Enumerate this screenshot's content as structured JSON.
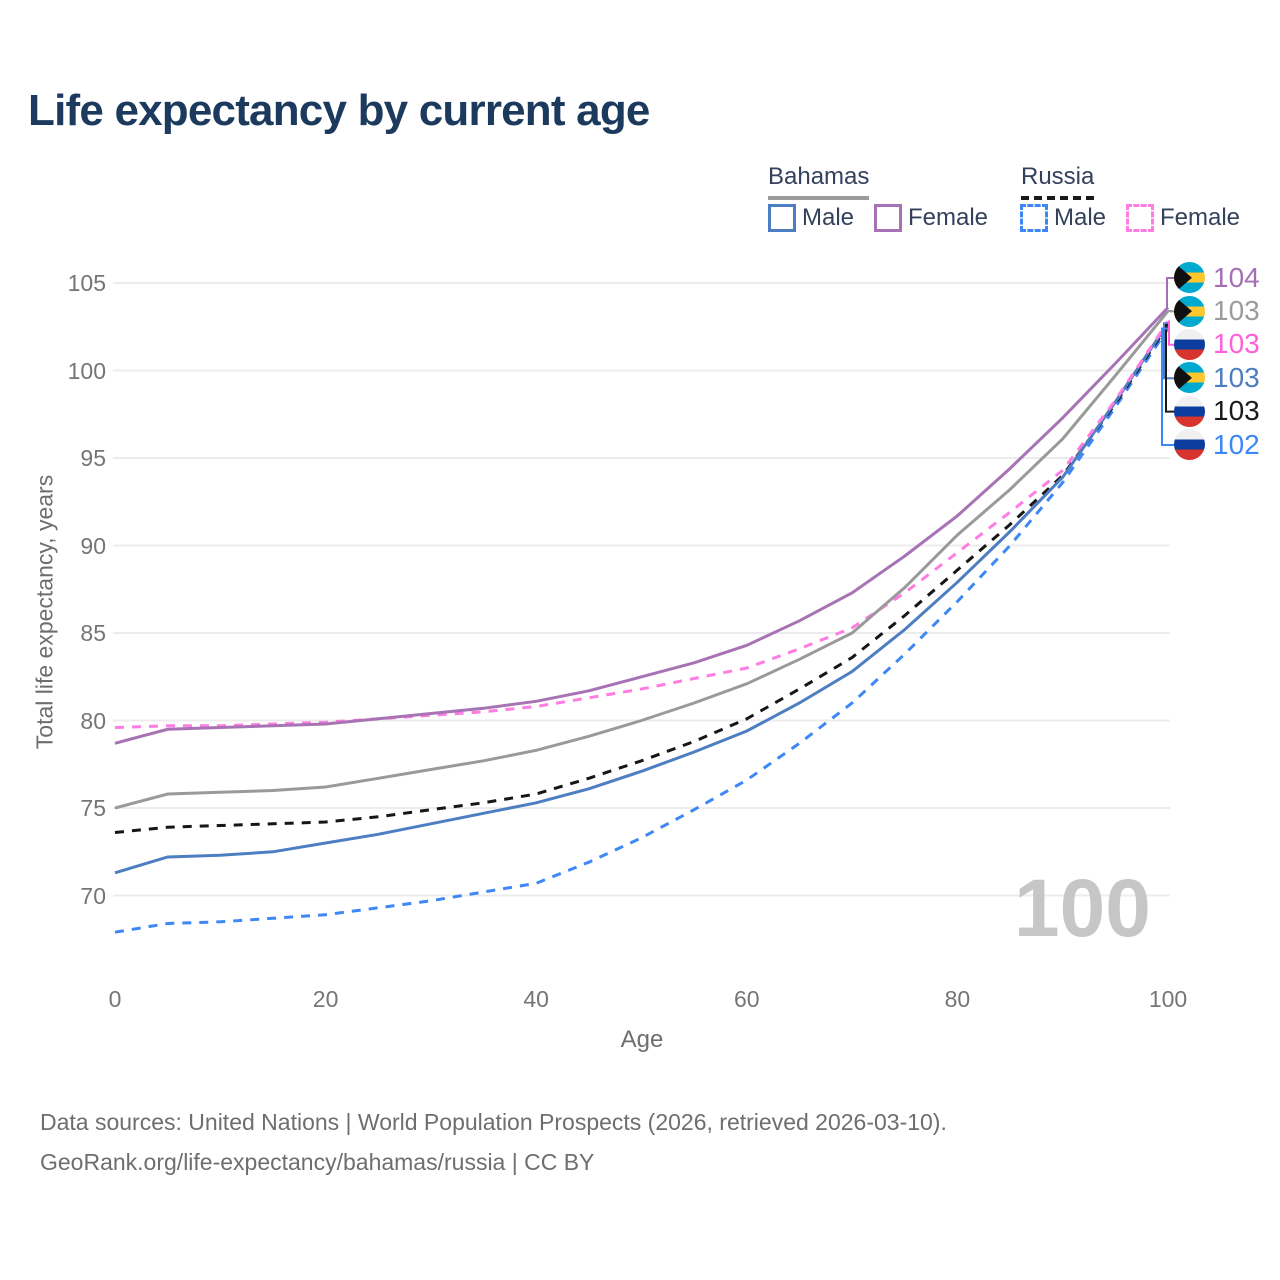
{
  "header": {
    "title": "Life expectancy by current age"
  },
  "legend": {
    "groups": [
      {
        "label": "Bahamas",
        "style": "solid",
        "underline_color": "#9b9b9b"
      },
      {
        "label": "Russia",
        "style": "dashed",
        "underline_color": "#1a1a1a"
      }
    ],
    "items": [
      {
        "label": "Male",
        "country": "Bahamas",
        "color": "#4d7ec1",
        "dash": false
      },
      {
        "label": "Female",
        "country": "Bahamas",
        "color": "#a873b4",
        "dash": false
      },
      {
        "label": "Male",
        "country": "Russia",
        "color": "#3d87f7",
        "dash": true
      },
      {
        "label": "Female",
        "country": "Russia",
        "color": "#ff7ce3",
        "dash": true
      }
    ]
  },
  "watermark": {
    "text": "100"
  },
  "right_labels": [
    {
      "flag": "bahamas",
      "value": "104",
      "color": "#a46fb5",
      "series": 0
    },
    {
      "flag": "bahamas",
      "value": "103",
      "color": "#9b9b9b",
      "series": 1
    },
    {
      "flag": "russia",
      "value": "103",
      "color": "#ff5fd8",
      "series": 2
    },
    {
      "flag": "bahamas",
      "value": "103",
      "color": "#4d7ec1",
      "series": 3
    },
    {
      "flag": "russia",
      "value": "103",
      "color": "#1a1a1a",
      "series": 4
    },
    {
      "flag": "russia",
      "value": "102",
      "color": "#3d87f7",
      "series": 5
    }
  ],
  "footer": {
    "line1": "Data sources: United Nations | World Population Prospects (2026, retrieved 2026-03-10).",
    "line2": "GeoRank.org/life-expectancy/bahamas/russia | CC BY"
  },
  "chart_data": {
    "type": "line",
    "title": "Life expectancy by current age",
    "xlabel": "Age",
    "ylabel": "Total life expectancy, years",
    "xlim": [
      0,
      100
    ],
    "ylim": [
      66,
      106
    ],
    "x_ticks": [
      0,
      20,
      40,
      60,
      80,
      100
    ],
    "y_ticks": [
      70,
      75,
      80,
      85,
      90,
      95,
      100,
      105
    ],
    "grid": "horizontal",
    "legend_position": "top-right",
    "x": [
      0,
      5,
      10,
      15,
      20,
      25,
      30,
      35,
      40,
      45,
      50,
      55,
      60,
      65,
      70,
      75,
      80,
      85,
      90,
      95,
      100
    ],
    "series": [
      {
        "name": "Bahamas Female",
        "country": "Bahamas",
        "sex": "Female",
        "color": "#a873b4",
        "dash": false,
        "end_label": "104",
        "values": [
          78.7,
          79.5,
          79.6,
          79.7,
          79.8,
          80.1,
          80.4,
          80.7,
          81.1,
          81.7,
          82.5,
          83.3,
          84.3,
          85.7,
          87.3,
          89.4,
          91.7,
          94.4,
          97.3,
          100.4,
          103.6
        ]
      },
      {
        "name": "Bahamas Both sexes",
        "country": "Bahamas",
        "sex": "Both",
        "color": "#9a9a9a",
        "dash": false,
        "end_label": "103",
        "values": [
          75.0,
          75.8,
          75.9,
          76.0,
          76.2,
          76.7,
          77.2,
          77.7,
          78.3,
          79.1,
          80.0,
          81.0,
          82.1,
          83.5,
          85.0,
          87.6,
          90.6,
          93.2,
          96.1,
          99.7,
          103.4
        ]
      },
      {
        "name": "Russia Female",
        "country": "Russia",
        "sex": "Female",
        "color": "#ff7ce3",
        "dash": true,
        "end_label": "103",
        "values": [
          79.6,
          79.7,
          79.7,
          79.8,
          79.9,
          80.1,
          80.3,
          80.5,
          80.8,
          81.3,
          81.8,
          82.4,
          83.0,
          84.1,
          85.3,
          87.3,
          89.6,
          91.9,
          94.3,
          98.3,
          102.8
        ]
      },
      {
        "name": "Bahamas Male",
        "country": "Bahamas",
        "sex": "Male",
        "color": "#4d7ec1",
        "dash": false,
        "end_label": "103",
        "values": [
          71.3,
          72.2,
          72.3,
          72.5,
          73.0,
          73.5,
          74.1,
          74.7,
          75.3,
          76.1,
          77.1,
          78.2,
          79.4,
          81.0,
          82.8,
          85.2,
          87.9,
          90.8,
          93.9,
          98.2,
          102.7
        ]
      },
      {
        "name": "Russia Both sexes",
        "country": "Russia",
        "sex": "Both",
        "color": "#161616",
        "dash": true,
        "end_label": "103",
        "values": [
          73.6,
          73.9,
          74.0,
          74.1,
          74.2,
          74.5,
          74.9,
          75.3,
          75.8,
          76.7,
          77.7,
          78.8,
          80.1,
          81.8,
          83.6,
          86.0,
          88.6,
          91.2,
          94.0,
          98.1,
          102.6
        ]
      },
      {
        "name": "Russia Male",
        "country": "Russia",
        "sex": "Male",
        "color": "#3d87f7",
        "dash": true,
        "end_label": "102",
        "values": [
          67.9,
          68.4,
          68.5,
          68.7,
          68.9,
          69.3,
          69.7,
          70.2,
          70.7,
          71.9,
          73.3,
          74.9,
          76.6,
          78.7,
          81.0,
          83.8,
          86.8,
          90.0,
          93.6,
          97.9,
          102.4
        ]
      }
    ]
  }
}
